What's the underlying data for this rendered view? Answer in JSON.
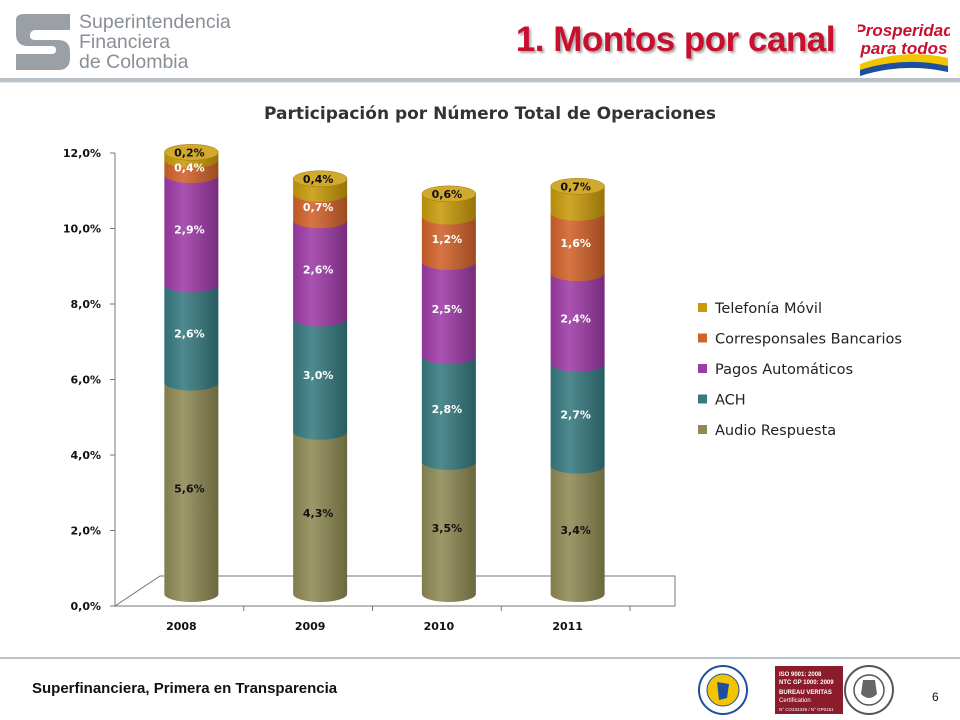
{
  "header": {
    "logo_lines": [
      "Superintendencia",
      "Financiera",
      "de Colombia"
    ],
    "slide_title": "1. Montos por canal",
    "brand_logo_lines": [
      "Prosperidad",
      "para todos"
    ]
  },
  "footer": {
    "tagline": "Superfinanciera, Primera en Transparencia",
    "page_number": "6",
    "cert_lines": [
      "ISO 9001: 2008",
      "NTC GP 1000: 2009",
      "BUREAU VERITAS",
      "Certification",
      "N° CO234339 / N° GP0151"
    ]
  },
  "colors": {
    "audio": "#8f8a54",
    "ach": "#367a80",
    "pagos": "#9e3ba7",
    "corresponsales": "#d1622a",
    "telefonia": "#c99a0a",
    "title_red": "#c8102e"
  },
  "chart_data": {
    "type": "bar",
    "stacked": true,
    "three_d": true,
    "shape": "cylinder",
    "title": "Participación por Número Total de Operaciones",
    "categories": [
      "2008",
      "2009",
      "2010",
      "2011"
    ],
    "ylim": [
      0,
      12
    ],
    "yticks": [
      "0,0%",
      "2,0%",
      "4,0%",
      "6,0%",
      "8,0%",
      "10,0%",
      "12,0%"
    ],
    "series": [
      {
        "name": "Audio Respuesta",
        "values": [
          5.6,
          4.3,
          3.5,
          3.4
        ],
        "labels": [
          "5,6%",
          "4,3%",
          "3,5%",
          "3,4%"
        ],
        "color_key": "audio"
      },
      {
        "name": "ACH",
        "values": [
          2.6,
          3.0,
          2.8,
          2.7
        ],
        "labels": [
          "2,6%",
          "3,0%",
          "2,8%",
          "2,7%"
        ],
        "color_key": "ach"
      },
      {
        "name": "Pagos Automáticos",
        "values": [
          2.9,
          2.6,
          2.5,
          2.4
        ],
        "labels": [
          "2,9%",
          "2,6%",
          "2,5%",
          "2,4%"
        ],
        "color_key": "pagos"
      },
      {
        "name": "Corresponsales Bancarios",
        "values": [
          0.4,
          0.7,
          1.2,
          1.6
        ],
        "labels": [
          "0,4%",
          "0,7%",
          "1,2%",
          "1,6%"
        ],
        "color_key": "corresponsales"
      },
      {
        "name": "Telefonía Móvil",
        "values": [
          0.2,
          0.4,
          0.6,
          0.7
        ],
        "labels": [
          "0,2%",
          "0,4%",
          "0,6%",
          "0,7%"
        ],
        "color_key": "telefonia"
      }
    ],
    "legend_position": "right",
    "legend_order": [
      "Telefonía Móvil",
      "Corresponsales Bancarios",
      "Pagos Automáticos",
      "ACH",
      "Audio Respuesta"
    ],
    "grid": false
  }
}
